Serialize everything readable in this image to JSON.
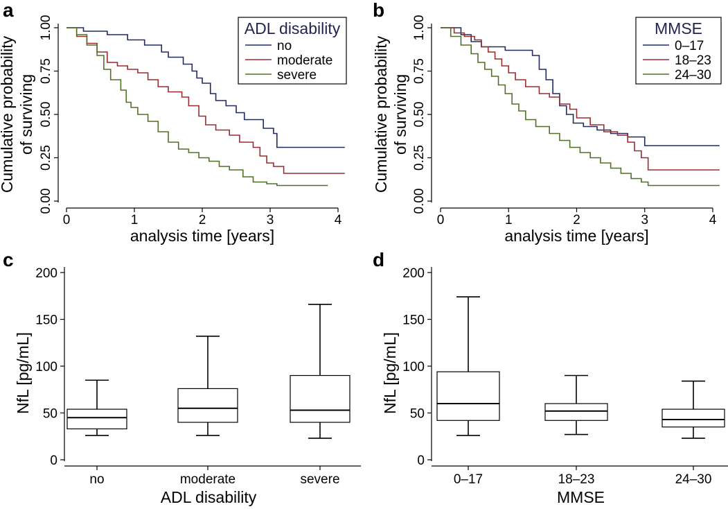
{
  "colors": {
    "no": "#1f2a5e",
    "moderate": "#9b2a2e",
    "severe": "#4e7127"
  },
  "chart_data": [
    {
      "id": "a",
      "panel": "a",
      "type": "line",
      "step": true,
      "title": "",
      "xlabel": "analysis time [years]",
      "ylabel": [
        "Cumulative probability",
        "of surviving"
      ],
      "xlim": [
        0,
        4.15
      ],
      "ylim": [
        0,
        1
      ],
      "xticks": [
        "0",
        "1",
        "2",
        "3",
        "4"
      ],
      "xtick_values": [
        0,
        1,
        2,
        3,
        4
      ],
      "yticks": [
        "0.00",
        "0.25",
        "0.50",
        "0.75",
        "1.00"
      ],
      "ytick_values": [
        0,
        0.25,
        0.5,
        0.75,
        1
      ],
      "legend": {
        "title": "ADL disability",
        "position": "top-right"
      },
      "series": [
        {
          "name": "no",
          "color": "#1f2a5e",
          "x": [
            0,
            0.25,
            0.6,
            0.9,
            1.15,
            1.4,
            1.5,
            1.72,
            1.85,
            1.92,
            2.0,
            2.12,
            2.2,
            2.35,
            2.5,
            2.62,
            2.9,
            3.05,
            3.1,
            4.1
          ],
          "y": [
            1.0,
            0.98,
            0.96,
            0.93,
            0.9,
            0.86,
            0.83,
            0.79,
            0.75,
            0.71,
            0.68,
            0.62,
            0.58,
            0.55,
            0.51,
            0.47,
            0.42,
            0.39,
            0.31,
            0.31
          ]
        },
        {
          "name": "moderate",
          "color": "#9b2a2e",
          "x": [
            0,
            0.15,
            0.3,
            0.45,
            0.6,
            0.75,
            0.9,
            1.05,
            1.2,
            1.35,
            1.5,
            1.7,
            1.8,
            1.95,
            2.05,
            2.2,
            2.4,
            2.55,
            2.75,
            2.85,
            2.95,
            3.05,
            3.2,
            4.1
          ],
          "y": [
            1.0,
            0.95,
            0.91,
            0.86,
            0.8,
            0.78,
            0.76,
            0.74,
            0.7,
            0.66,
            0.63,
            0.6,
            0.55,
            0.49,
            0.44,
            0.41,
            0.38,
            0.34,
            0.31,
            0.26,
            0.22,
            0.2,
            0.16,
            0.16
          ]
        },
        {
          "name": "severe",
          "color": "#4e7127",
          "x": [
            0,
            0.15,
            0.3,
            0.45,
            0.55,
            0.65,
            0.8,
            0.88,
            0.95,
            1.05,
            1.2,
            1.35,
            1.5,
            1.65,
            1.8,
            1.95,
            2.1,
            2.25,
            2.4,
            2.6,
            2.75,
            2.95,
            3.1,
            3.25,
            3.85
          ],
          "y": [
            1.0,
            0.96,
            0.9,
            0.84,
            0.76,
            0.7,
            0.64,
            0.57,
            0.54,
            0.5,
            0.46,
            0.4,
            0.34,
            0.3,
            0.28,
            0.25,
            0.23,
            0.2,
            0.18,
            0.14,
            0.11,
            0.1,
            0.09,
            0.09,
            0.09
          ]
        }
      ]
    },
    {
      "id": "b",
      "panel": "b",
      "type": "line",
      "step": true,
      "title": "",
      "xlabel": "analysis time [years]",
      "ylabel": [
        "Cumulative probability",
        "of surviving"
      ],
      "xlim": [
        0,
        4.15
      ],
      "ylim": [
        0,
        1
      ],
      "xticks": [
        "0",
        "1",
        "2",
        "3",
        "4"
      ],
      "xtick_values": [
        0,
        1,
        2,
        3,
        4
      ],
      "yticks": [
        "0.00",
        "0.25",
        "0.50",
        "0.75",
        "1.00"
      ],
      "ytick_values": [
        0,
        0.25,
        0.5,
        0.75,
        1
      ],
      "legend": {
        "title": "MMSE",
        "position": "top-right"
      },
      "series": [
        {
          "name": "0–17",
          "color": "#1f2a5e",
          "x": [
            0,
            0.3,
            0.45,
            0.6,
            0.95,
            1.35,
            1.45,
            1.55,
            1.65,
            1.75,
            1.85,
            1.95,
            2.1,
            2.3,
            2.5,
            2.75,
            3.0,
            4.1
          ],
          "y": [
            1.0,
            0.96,
            0.92,
            0.89,
            0.87,
            0.84,
            0.76,
            0.7,
            0.62,
            0.55,
            0.5,
            0.45,
            0.43,
            0.41,
            0.39,
            0.37,
            0.32,
            0.32
          ]
        },
        {
          "name": "18–23",
          "color": "#9b2a2e",
          "x": [
            0,
            0.2,
            0.35,
            0.5,
            0.6,
            0.7,
            0.8,
            0.9,
            1.0,
            1.1,
            1.25,
            1.45,
            1.6,
            1.75,
            1.9,
            2.0,
            2.2,
            2.4,
            2.6,
            2.75,
            2.85,
            2.95,
            3.05,
            4.1
          ],
          "y": [
            1.0,
            0.97,
            0.95,
            0.93,
            0.89,
            0.86,
            0.82,
            0.78,
            0.74,
            0.7,
            0.66,
            0.62,
            0.6,
            0.56,
            0.53,
            0.48,
            0.44,
            0.4,
            0.38,
            0.34,
            0.29,
            0.25,
            0.18,
            0.18
          ]
        },
        {
          "name": "24–30",
          "color": "#4e7127",
          "x": [
            0,
            0.15,
            0.3,
            0.45,
            0.55,
            0.65,
            0.75,
            0.85,
            0.95,
            1.05,
            1.15,
            1.25,
            1.4,
            1.6,
            1.75,
            1.9,
            2.05,
            2.2,
            2.35,
            2.5,
            2.65,
            2.8,
            2.95,
            3.05,
            4.1
          ],
          "y": [
            1.0,
            0.95,
            0.9,
            0.85,
            0.8,
            0.76,
            0.72,
            0.67,
            0.62,
            0.56,
            0.52,
            0.47,
            0.43,
            0.39,
            0.35,
            0.31,
            0.28,
            0.25,
            0.22,
            0.19,
            0.16,
            0.13,
            0.11,
            0.09,
            0.09
          ]
        }
      ]
    },
    {
      "id": "c",
      "panel": "c",
      "type": "box",
      "title": "",
      "xlabel": "ADL disability",
      "ylabel": "NfL [pg/mL]",
      "ylim": [
        0,
        200
      ],
      "yticks": [
        "0",
        "50",
        "100",
        "150",
        "200"
      ],
      "ytick_values": [
        0,
        50,
        100,
        150,
        200
      ],
      "categories": [
        "no",
        "moderate",
        "severe"
      ],
      "boxes": [
        {
          "whisker_low": 26,
          "q1": 33,
          "median": 45,
          "q3": 54,
          "whisker_high": 85
        },
        {
          "whisker_low": 26,
          "q1": 40,
          "median": 55,
          "q3": 76,
          "whisker_high": 132
        },
        {
          "whisker_low": 23,
          "q1": 40,
          "median": 53,
          "q3": 90,
          "whisker_high": 166
        }
      ]
    },
    {
      "id": "d",
      "panel": "d",
      "type": "box",
      "title": "",
      "xlabel": "MMSE",
      "ylabel": "NfL [pg/mL]",
      "ylim": [
        0,
        200
      ],
      "yticks": [
        "0",
        "50",
        "100",
        "150",
        "200"
      ],
      "ytick_values": [
        0,
        50,
        100,
        150,
        200
      ],
      "categories": [
        "0–17",
        "18–23",
        "24–30"
      ],
      "boxes": [
        {
          "whisker_low": 26,
          "q1": 42,
          "median": 60,
          "q3": 94,
          "whisker_high": 174
        },
        {
          "whisker_low": 27,
          "q1": 42,
          "median": 52,
          "q3": 60,
          "whisker_high": 90
        },
        {
          "whisker_low": 23,
          "q1": 35,
          "median": 43,
          "q3": 54,
          "whisker_high": 84
        }
      ]
    }
  ]
}
